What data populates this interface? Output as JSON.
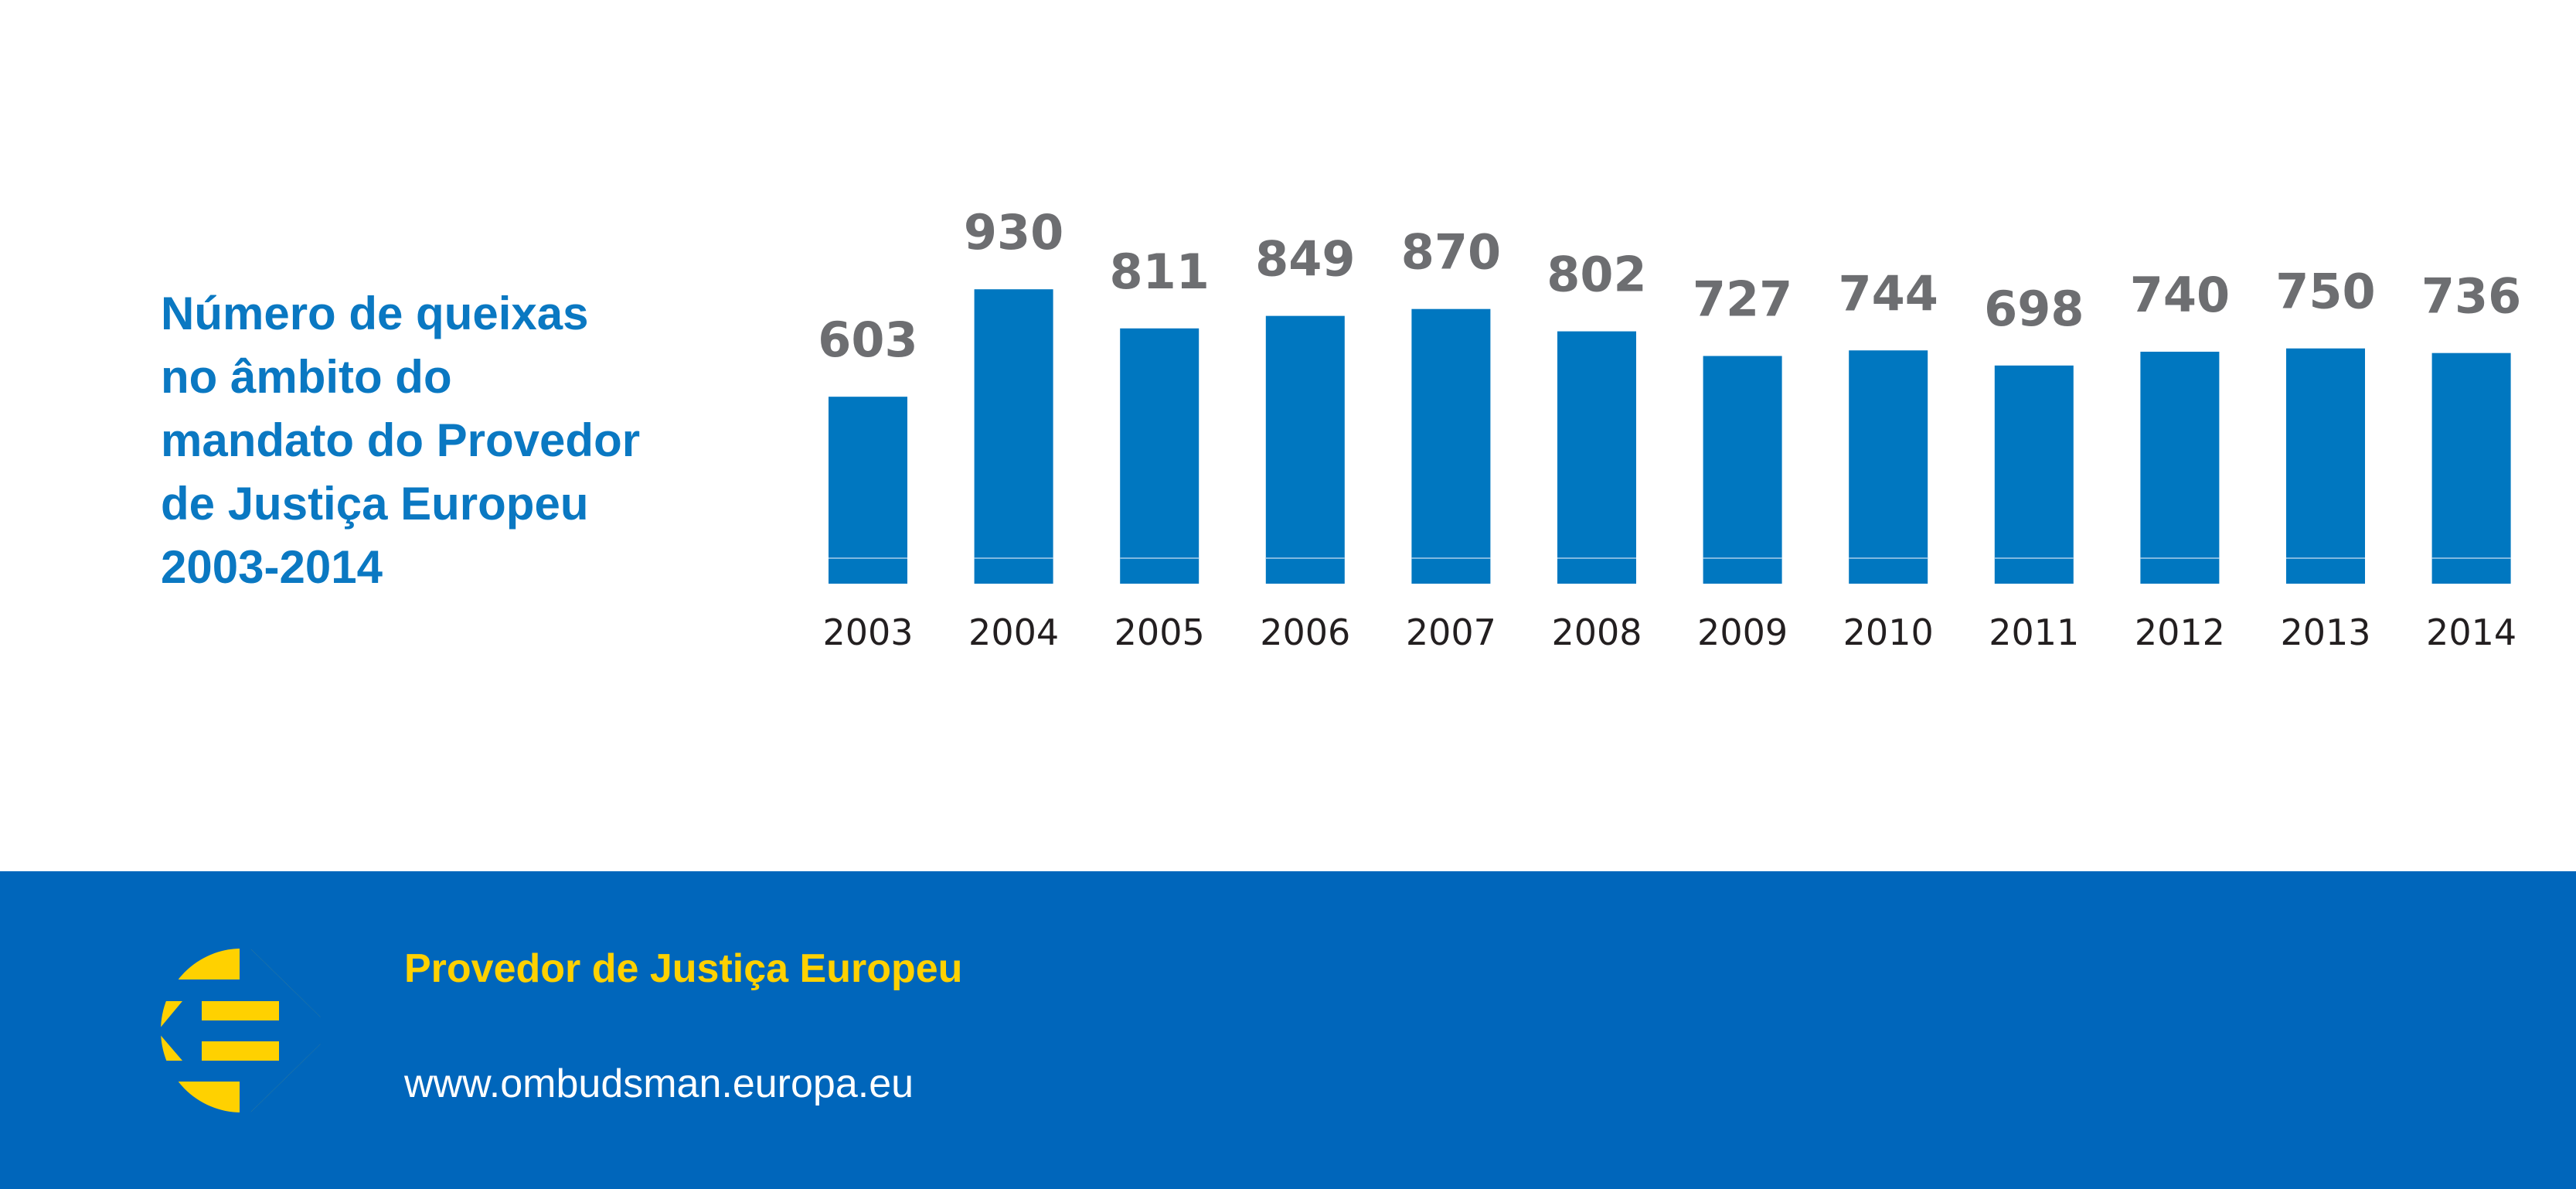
{
  "title_lines": [
    "Número de queixas",
    "no âmbito do",
    "mandato do Provedor",
    "de Justiça Europeu",
    "2003-2014"
  ],
  "footer": {
    "organization": "Provedor de Justiça Europeu",
    "url": "www.ombudsman.europa.eu"
  },
  "colors": {
    "bar": "#0077c0",
    "title": "#0a78c2",
    "footer_bg": "#0066bb",
    "logo": "#ffd100",
    "value_label": "#6d6e71"
  },
  "chart_data": {
    "type": "bar",
    "title": "Número de queixas no âmbito do mandato do Provedor de Justiça Europeu 2003-2014",
    "categories": [
      "2003",
      "2004",
      "2005",
      "2006",
      "2007",
      "2008",
      "2009",
      "2010",
      "2011",
      "2012",
      "2013",
      "2014"
    ],
    "values": [
      603,
      930,
      811,
      849,
      870,
      802,
      727,
      744,
      698,
      740,
      750,
      736
    ],
    "xlabel": "",
    "ylabel": "",
    "grid": false,
    "legend": "none"
  }
}
